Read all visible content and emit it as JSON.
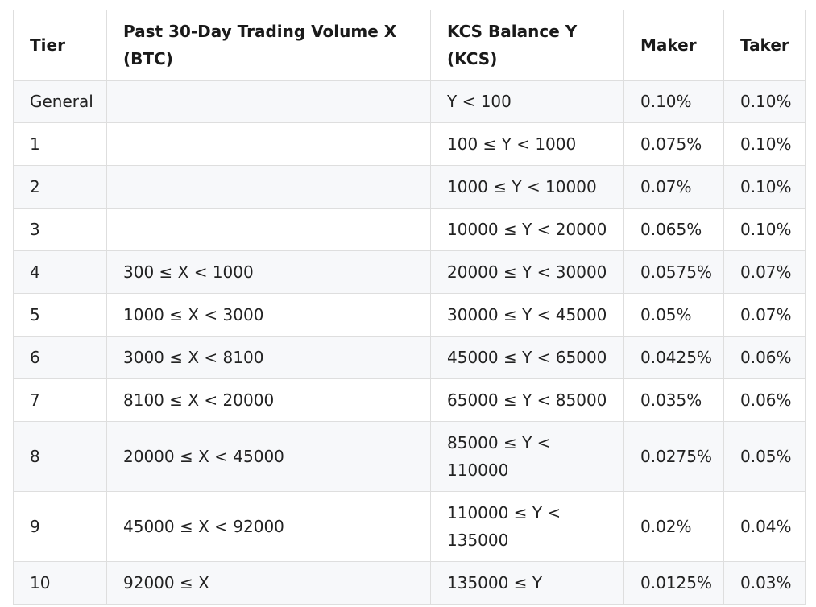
{
  "table": {
    "headers": [
      "Tier",
      "Past 30-Day Trading Volume X (BTC)",
      "KCS Balance Y (KCS)",
      "Maker",
      "Taker"
    ],
    "rows": [
      [
        "General",
        "",
        "Y < 100",
        "0.10%",
        "0.10%"
      ],
      [
        "1",
        "",
        "100 ≤ Y < 1000",
        "0.075%",
        "0.10%"
      ],
      [
        "2",
        "",
        "1000 ≤ Y < 10000",
        "0.07%",
        "0.10%"
      ],
      [
        "3",
        "",
        "10000 ≤ Y < 20000",
        "0.065%",
        "0.10%"
      ],
      [
        "4",
        "300 ≤ X < 1000",
        "20000 ≤ Y < 30000",
        "0.0575%",
        "0.07%"
      ],
      [
        "5",
        "1000 ≤ X < 3000",
        "30000 ≤ Y < 45000",
        "0.05%",
        "0.07%"
      ],
      [
        "6",
        "3000 ≤ X < 8100",
        "45000 ≤ Y < 65000",
        "0.0425%",
        "0.06%"
      ],
      [
        "7",
        "8100 ≤ X < 20000",
        "65000 ≤ Y < 85000",
        "0.035%",
        "0.06%"
      ],
      [
        "8",
        "20000 ≤ X < 45000",
        "85000 ≤ Y < 110000",
        "0.0275%",
        "0.05%"
      ],
      [
        "9",
        "45000 ≤ X < 92000",
        "110000 ≤ Y < 135000",
        "0.02%",
        "0.04%"
      ],
      [
        "10",
        "92000 ≤ X",
        "135000 ≤ Y",
        "0.0125%",
        "0.03%"
      ]
    ]
  }
}
